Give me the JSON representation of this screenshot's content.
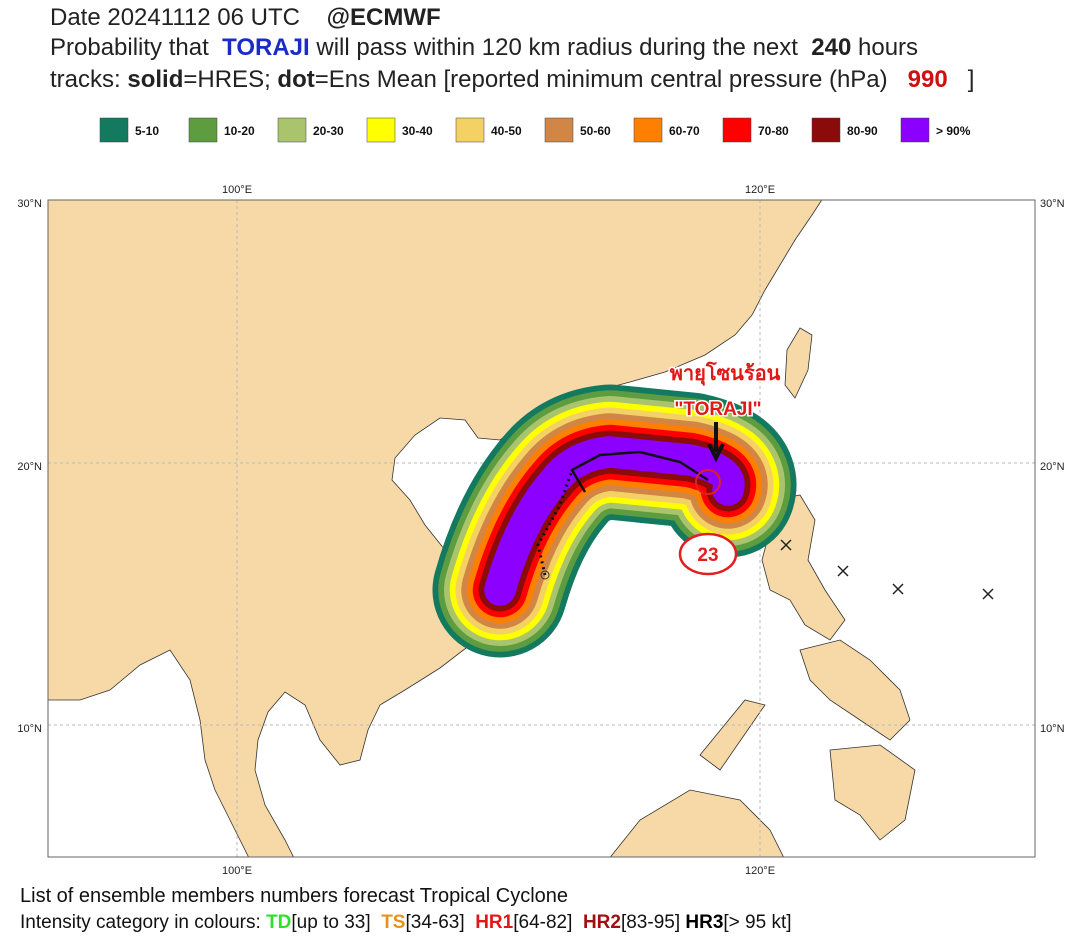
{
  "header": {
    "date": "Date 20241112 06 UTC",
    "source": "@ECMWF",
    "line2": {
      "a": "Probability that",
      "storm": "TORAJI",
      "b": "will pass within 120 km radius during the next",
      "hours": "240",
      "c": "hours"
    },
    "line3": {
      "a": "tracks:",
      "solid": "solid",
      "b": "=HRES;",
      "dot": "dot",
      "c": "=Ens Mean [reported minimum central pressure (hPa)",
      "pressure": "990",
      "d": "]"
    }
  },
  "legend": [
    {
      "label": "5-10",
      "color": "#137a5f"
    },
    {
      "label": "10-20",
      "color": "#5d9c3f"
    },
    {
      "label": "20-30",
      "color": "#a9c46c"
    },
    {
      "label": "30-40",
      "color": "#ffff00"
    },
    {
      "label": "40-50",
      "color": "#f4d165"
    },
    {
      "label": "50-60",
      "color": "#d18646"
    },
    {
      "label": "60-70",
      "color": "#ff7f00"
    },
    {
      "label": "70-80",
      "color": "#ff0000"
    },
    {
      "label": "80-90",
      "color": "#8b0a0a"
    },
    {
      "label": "> 90%",
      "color": "#8b00ff"
    }
  ],
  "map": {
    "lon_labels": [
      "100°E",
      "120°E"
    ],
    "lat_labels": [
      "30°N",
      "20°N",
      "10°N"
    ],
    "annotation": {
      "thai": "พายุโซนร้อน",
      "name": "\"TORAJI\"",
      "number": "23"
    }
  },
  "footer": {
    "line1": "List of ensemble members numbers forecast Tropical Cyclone",
    "line2": {
      "a": "Intensity category in colours:",
      "td": "TD",
      "td_range": "[up to 33]",
      "ts": "TS",
      "ts_range": "[34-63]",
      "hr1": "HR1",
      "hr1_range": "[64-82]",
      "hr2": "HR2",
      "hr2_range": "[83-95]",
      "hr3": "HR3",
      "hr3_range": "[> 95 kt]"
    }
  }
}
